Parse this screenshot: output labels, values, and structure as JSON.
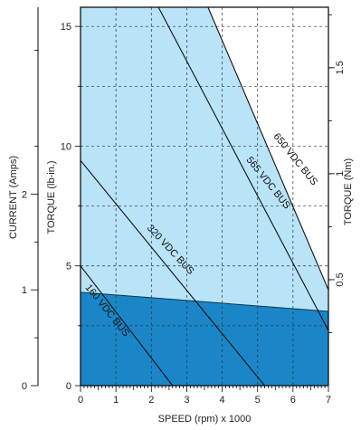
{
  "chart_data": {
    "type": "area",
    "xlabel": "SPEED (rpm) x 1000",
    "ylabel_torque_lbin": "TORQUE (lb-in.)",
    "ylabel_current": "CURRENT (Amps)",
    "ylabel_torque_nm": "TORQUE (Nm)",
    "xlim": [
      0,
      7
    ],
    "ylim": [
      0,
      15.8
    ],
    "x_ticks": [
      "0",
      "1",
      "2",
      "3",
      "4",
      "5",
      "6",
      "7"
    ],
    "y_ticks_torque_lbin": [
      "0",
      "5",
      "10",
      "15"
    ],
    "y_ticks_current": [
      "0",
      "1",
      "2"
    ],
    "y_ticks_torque_nm": [
      "0.5",
      "1",
      "1.5"
    ],
    "grid": true,
    "colors": {
      "continuous_region": "#1a86c8",
      "intermittent_region": "#b9e3f7",
      "line": "#111111"
    },
    "continuous_limit": {
      "x": [
        0,
        7
      ],
      "y": [
        3.9,
        3.1
      ]
    },
    "intermittent_top": {
      "x": [
        0,
        3.6,
        7
      ],
      "y": [
        15.8,
        15.8,
        4.0
      ]
    },
    "series": [
      {
        "name": "160 VDC BUS",
        "x": [
          0,
          2.6
        ],
        "y": [
          5.0,
          0
        ]
      },
      {
        "name": "320 VDC BUS",
        "x": [
          0,
          5.2
        ],
        "y": [
          9.4,
          0
        ]
      },
      {
        "name": "565 VDC BUS",
        "x": [
          2.2,
          7
        ],
        "y": [
          15.8,
          2.3
        ]
      },
      {
        "name": "650 VDC BUS",
        "x": [
          3.6,
          7
        ],
        "y": [
          15.8,
          4.0
        ]
      }
    ]
  }
}
